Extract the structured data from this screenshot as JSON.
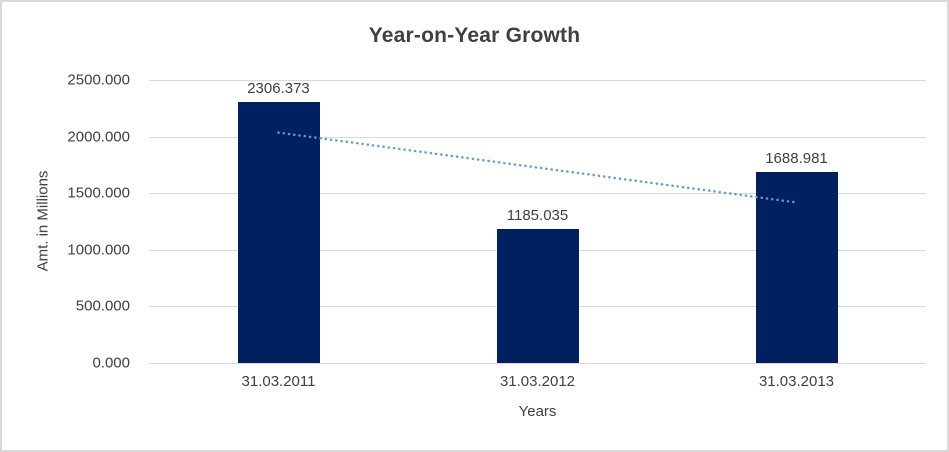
{
  "chart_data": {
    "type": "bar",
    "title": "Year-on-Year Growth",
    "xlabel": "Years",
    "ylabel": "Amt. in Millions",
    "categories": [
      "31.03.2011",
      "31.03.2012",
      "31.03.2013"
    ],
    "values": [
      2306.373,
      1185.035,
      1688.981
    ],
    "value_labels": [
      "2306.373",
      "1185.035",
      "1688.981"
    ],
    "ylim": [
      0,
      2500
    ],
    "yticks": [
      "2500.000",
      "2000.000",
      "1500.000",
      "1000.000",
      "500.000",
      "0.000"
    ],
    "grid": true,
    "legend": "none",
    "trendline": {
      "type": "linear",
      "style": "dotted",
      "start_value": 2035.5,
      "end_value": 1418.1
    },
    "colors": {
      "bar": "#002060",
      "trendline": "#5B9BD5",
      "gridline": "#D9D9D9",
      "text": "#404040",
      "background": "#FFFFFF"
    }
  }
}
